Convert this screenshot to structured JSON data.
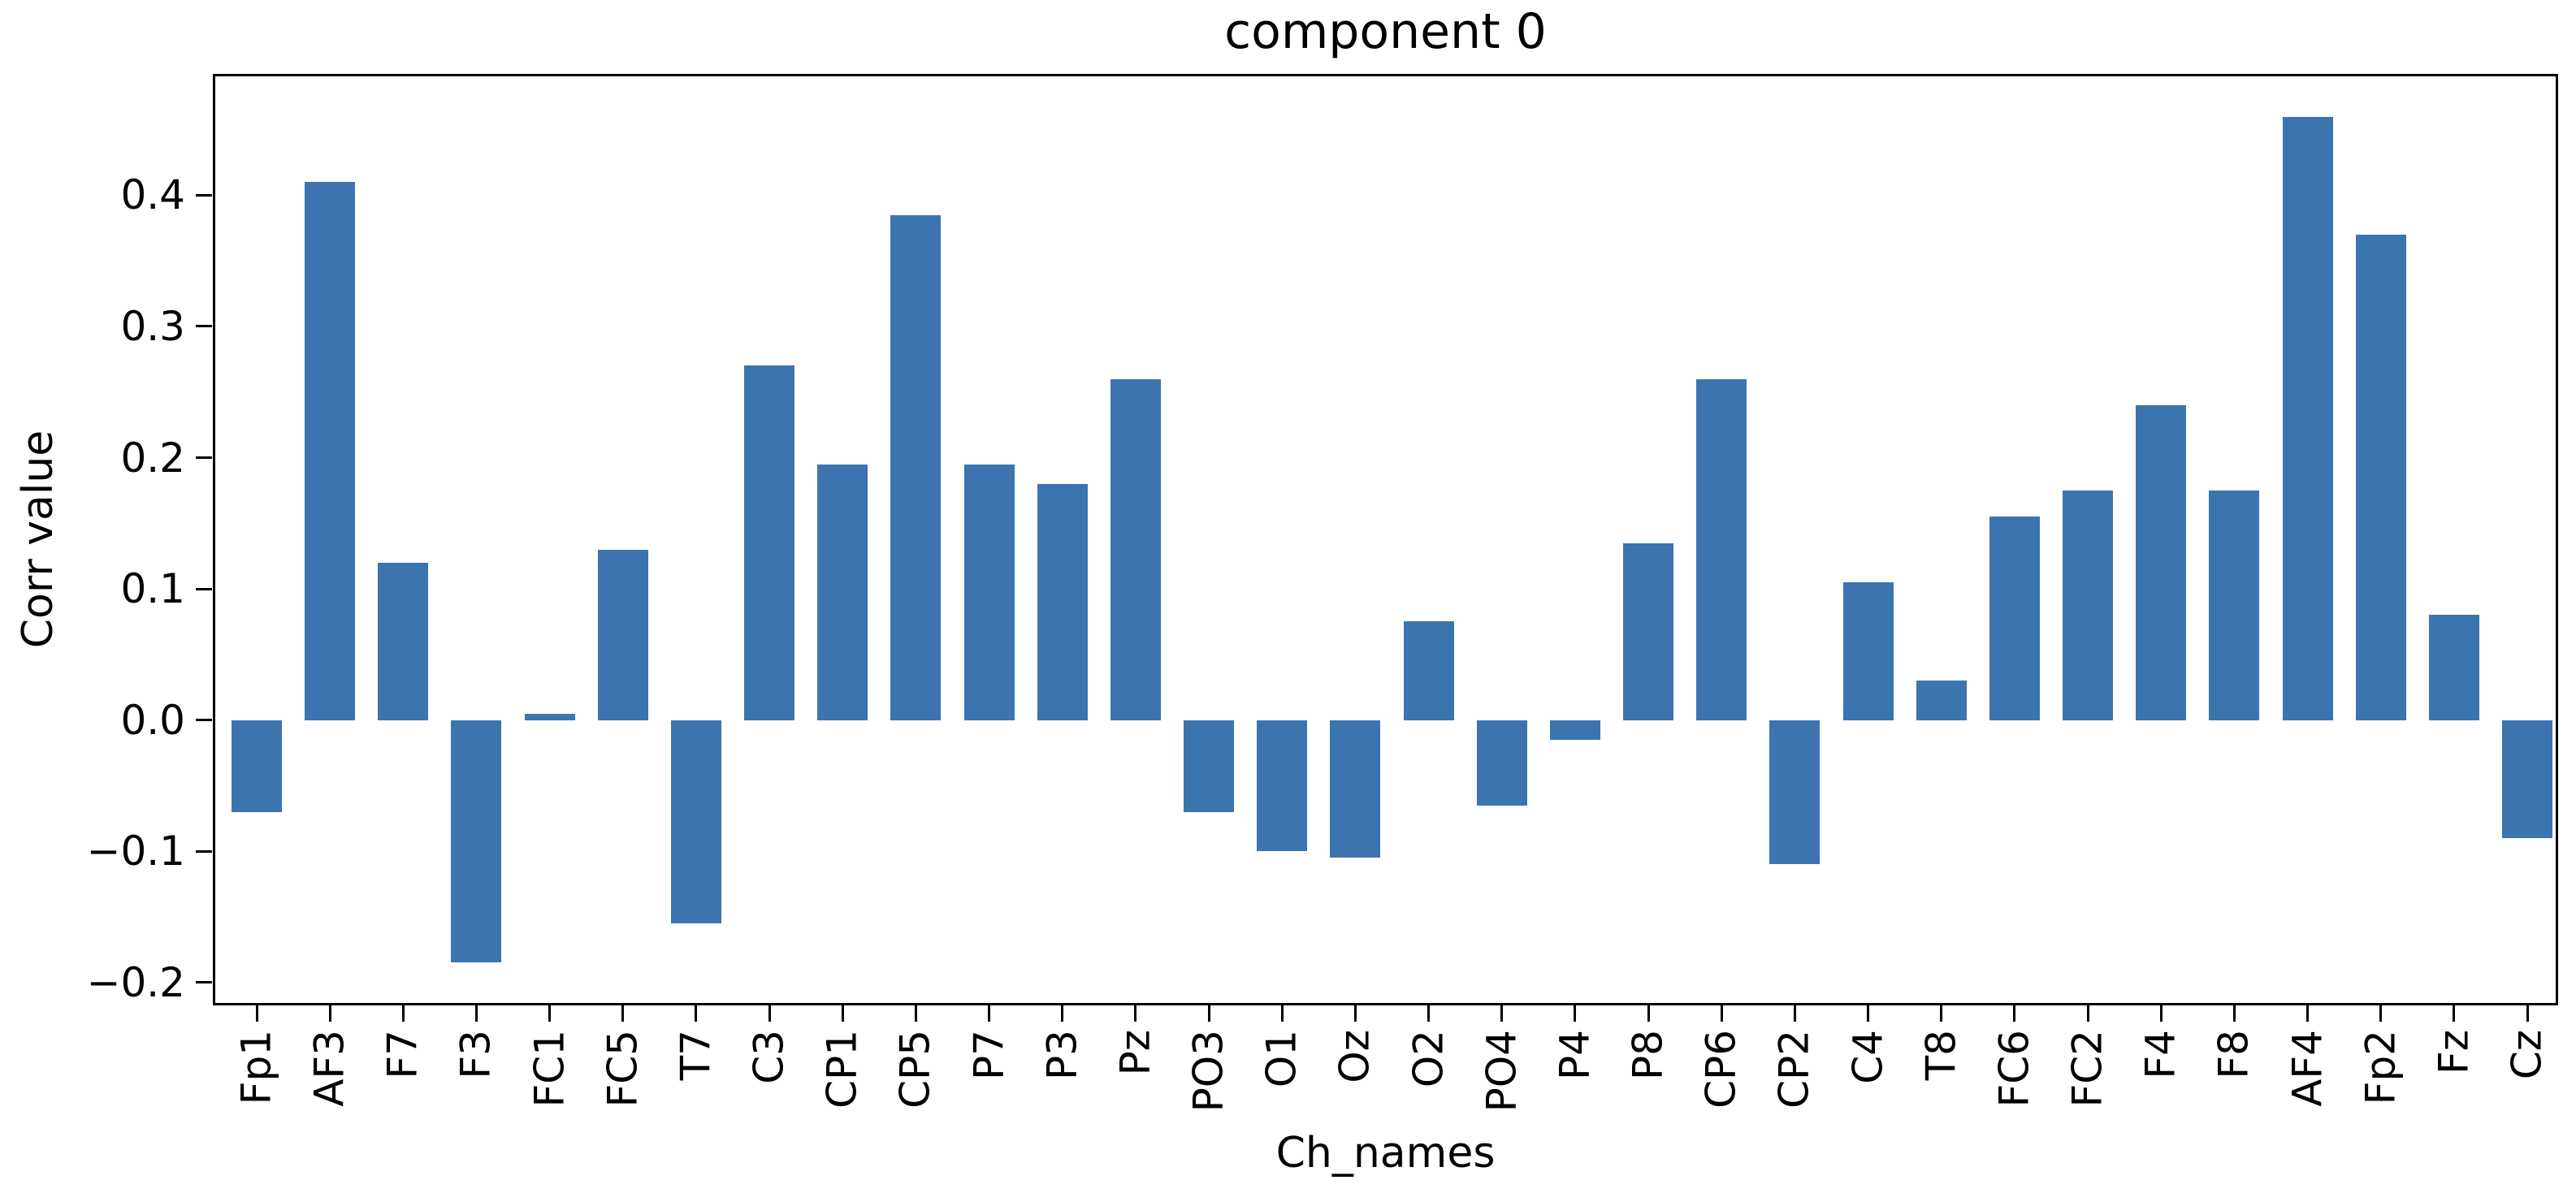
{
  "figure": {
    "title": "component 0",
    "background_color": "#ffffff",
    "axis_color": "#000000"
  },
  "chart_data": {
    "type": "bar",
    "title": "component 0",
    "xlabel": "Ch_names",
    "ylabel": "Corr value",
    "bar_color": "#3b74af",
    "grid": false,
    "legend": null,
    "ylim": [
      -0.2175,
      0.4925
    ],
    "yticks": {
      "values": [
        -0.2,
        -0.1,
        0.0,
        0.1,
        0.2,
        0.3,
        0.4
      ],
      "labels": [
        "−0.2",
        "−0.1",
        "0.0",
        "0.1",
        "0.2",
        "0.3",
        "0.4"
      ]
    },
    "categories": [
      "Fp1",
      "AF3",
      "F7",
      "F3",
      "FC1",
      "FC5",
      "T7",
      "C3",
      "CP1",
      "CP5",
      "P7",
      "P3",
      "Pz",
      "PO3",
      "O1",
      "Oz",
      "O2",
      "PO4",
      "P4",
      "P8",
      "CP6",
      "CP2",
      "C4",
      "T8",
      "FC6",
      "FC2",
      "F4",
      "F8",
      "AF4",
      "Fp2",
      "Fz",
      "Cz"
    ],
    "values": [
      -0.07,
      0.41,
      0.12,
      -0.185,
      0.005,
      0.13,
      -0.155,
      0.27,
      0.195,
      0.385,
      0.195,
      0.18,
      0.26,
      -0.07,
      -0.1,
      -0.105,
      0.075,
      -0.065,
      -0.015,
      0.135,
      0.26,
      -0.11,
      0.105,
      0.03,
      0.155,
      0.175,
      0.24,
      0.175,
      0.46,
      0.37,
      0.08,
      -0.09
    ]
  }
}
